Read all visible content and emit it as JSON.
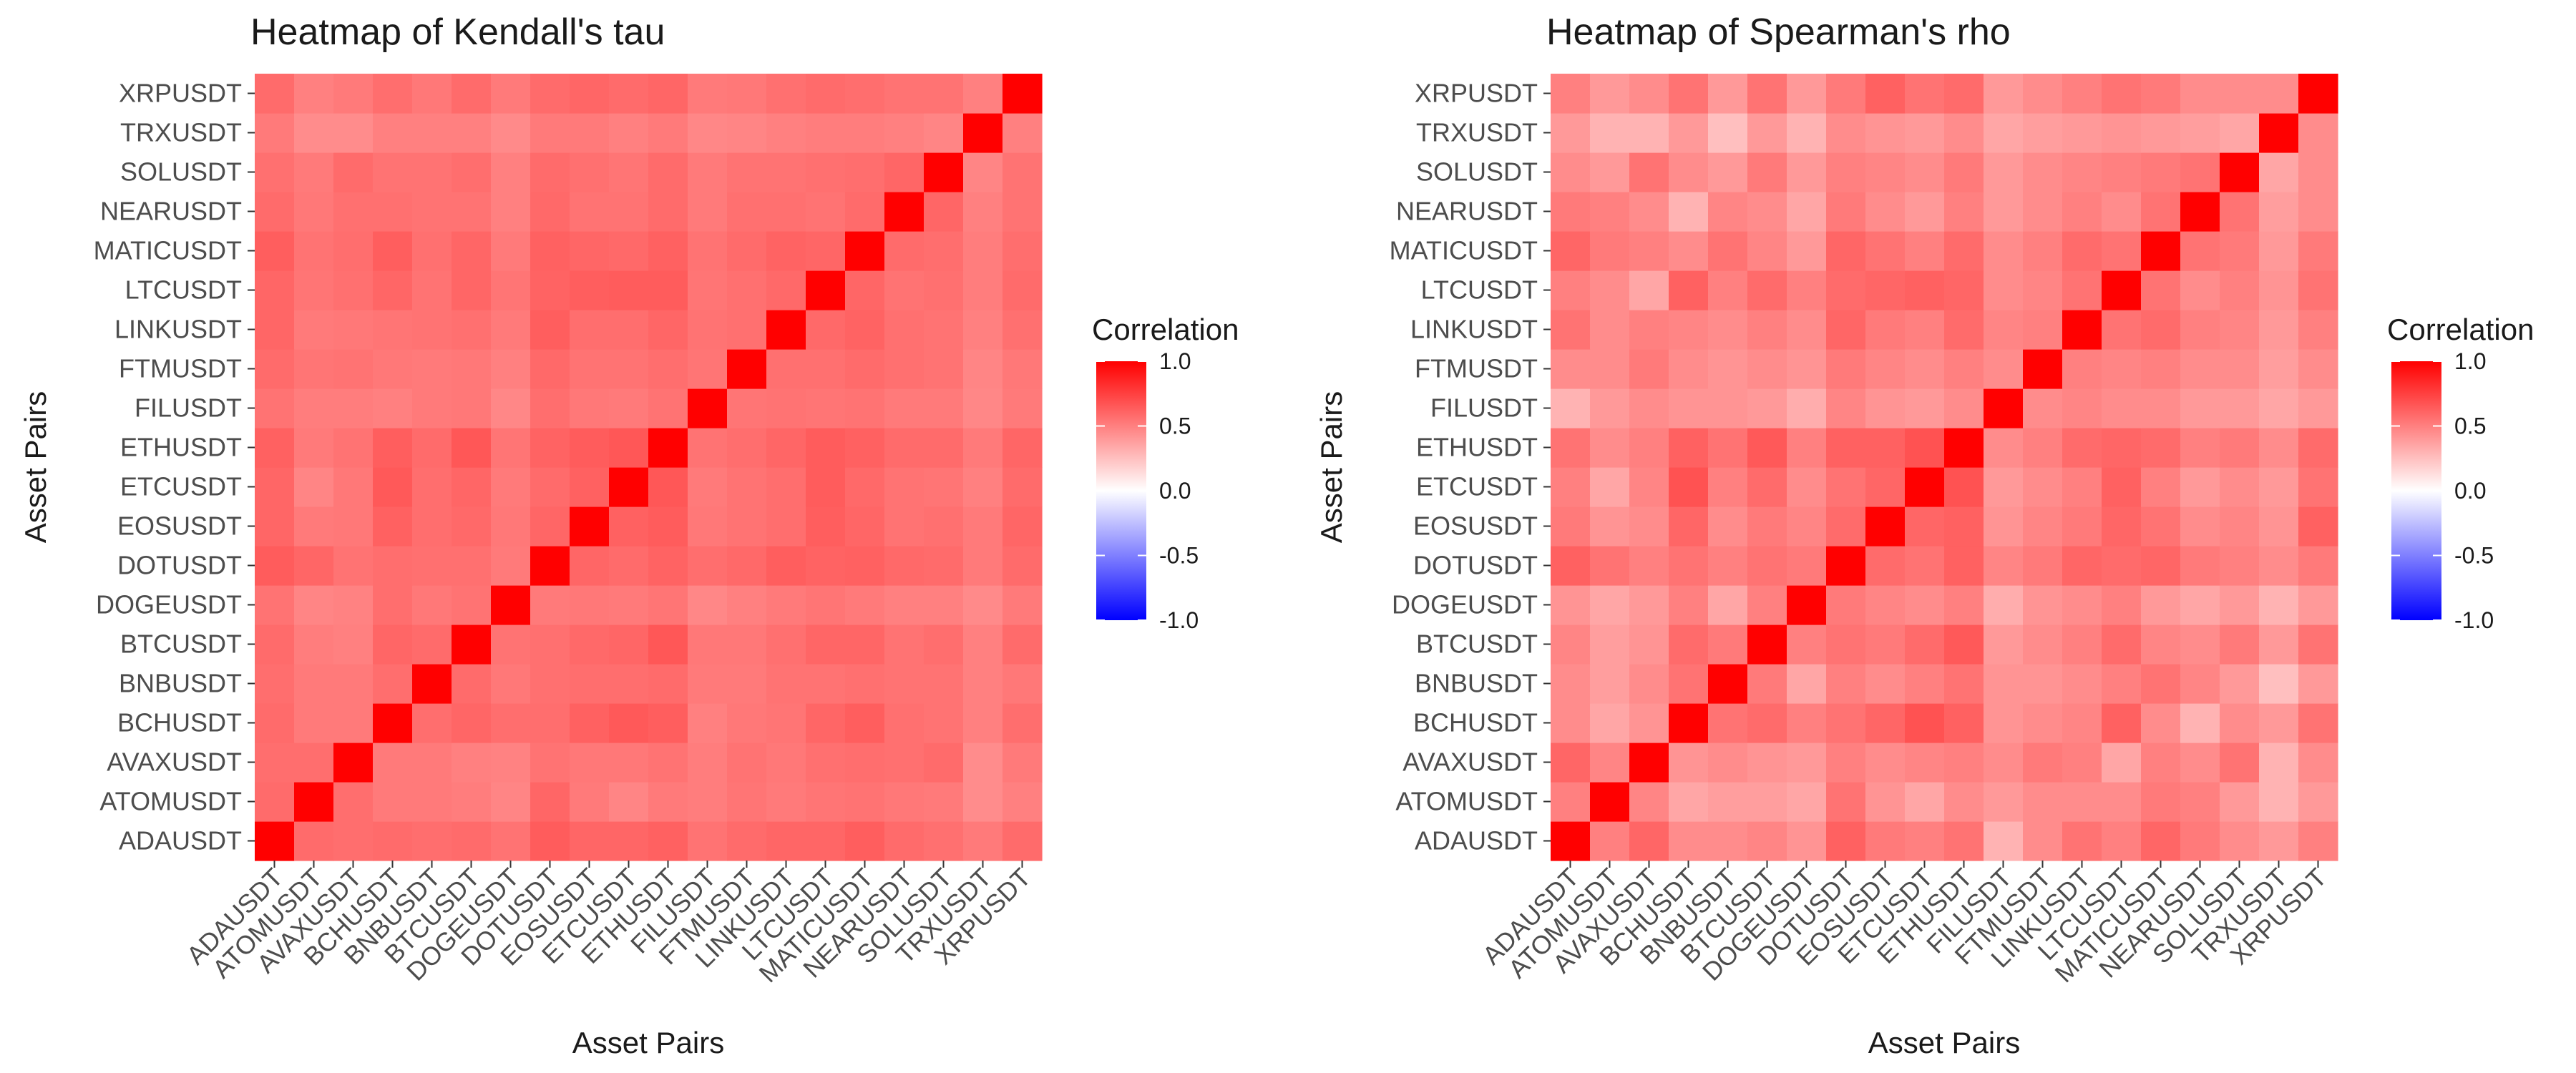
{
  "chart_data": [
    {
      "type": "heatmap",
      "title": "Heatmap of Kendall's tau",
      "xlabel": "Asset Pairs",
      "ylabel": "Asset Pairs",
      "legend_title": "Correlation",
      "legend_placement": "right",
      "legend_ticks": [
        "1.0",
        "0.5",
        "0.0",
        "-0.5",
        "-1.0"
      ],
      "color_range": [
        -1,
        1
      ],
      "colors": {
        "low": "#0000ff",
        "mid": "#ffffff",
        "high": "#ff0000"
      },
      "categories": [
        "ADAUSDT",
        "ATOMUSDT",
        "AVAXUSDT",
        "BCHUSDT",
        "BNBUSDT",
        "BTCUSDT",
        "DOGEUSDT",
        "DOTUSDT",
        "EOSUSDT",
        "ETCUSDT",
        "ETHUSDT",
        "FILUSDT",
        "FTMUSDT",
        "LINKUSDT",
        "LTCUSDT",
        "MATICUSDT",
        "NEARUSDT",
        "SOLUSDT",
        "TRXUSDT",
        "XRPUSDT"
      ],
      "matrix": [
        [
          1.0,
          0.58,
          0.57,
          0.58,
          0.57,
          0.58,
          0.55,
          0.64,
          0.6,
          0.6,
          0.62,
          0.55,
          0.58,
          0.6,
          0.6,
          0.63,
          0.58,
          0.56,
          0.52,
          0.58
        ],
        [
          0.58,
          1.0,
          0.57,
          0.52,
          0.52,
          0.51,
          0.48,
          0.6,
          0.52,
          0.48,
          0.52,
          0.51,
          0.54,
          0.52,
          0.54,
          0.55,
          0.53,
          0.52,
          0.45,
          0.5
        ],
        [
          0.57,
          0.57,
          1.0,
          0.52,
          0.52,
          0.5,
          0.49,
          0.55,
          0.53,
          0.53,
          0.55,
          0.51,
          0.55,
          0.53,
          0.56,
          0.57,
          0.56,
          0.58,
          0.45,
          0.52
        ],
        [
          0.58,
          0.52,
          0.52,
          1.0,
          0.57,
          0.6,
          0.57,
          0.57,
          0.62,
          0.65,
          0.63,
          0.5,
          0.53,
          0.54,
          0.6,
          0.63,
          0.56,
          0.55,
          0.5,
          0.57
        ],
        [
          0.57,
          0.52,
          0.52,
          0.57,
          1.0,
          0.58,
          0.53,
          0.56,
          0.57,
          0.57,
          0.58,
          0.52,
          0.52,
          0.55,
          0.55,
          0.56,
          0.55,
          0.55,
          0.5,
          0.53
        ],
        [
          0.58,
          0.51,
          0.5,
          0.6,
          0.58,
          1.0,
          0.55,
          0.56,
          0.59,
          0.6,
          0.66,
          0.53,
          0.53,
          0.56,
          0.6,
          0.6,
          0.55,
          0.57,
          0.5,
          0.58
        ],
        [
          0.55,
          0.48,
          0.49,
          0.57,
          0.53,
          0.55,
          1.0,
          0.52,
          0.53,
          0.52,
          0.54,
          0.47,
          0.5,
          0.52,
          0.54,
          0.52,
          0.5,
          0.5,
          0.46,
          0.52
        ],
        [
          0.64,
          0.6,
          0.55,
          0.57,
          0.56,
          0.56,
          0.52,
          1.0,
          0.6,
          0.58,
          0.61,
          0.57,
          0.59,
          0.63,
          0.61,
          0.62,
          0.59,
          0.58,
          0.52,
          0.58
        ],
        [
          0.6,
          0.52,
          0.53,
          0.62,
          0.57,
          0.59,
          0.53,
          0.6,
          1.0,
          0.62,
          0.64,
          0.53,
          0.55,
          0.57,
          0.63,
          0.6,
          0.55,
          0.56,
          0.52,
          0.6
        ],
        [
          0.6,
          0.48,
          0.53,
          0.65,
          0.57,
          0.6,
          0.52,
          0.58,
          0.62,
          1.0,
          0.66,
          0.52,
          0.55,
          0.57,
          0.64,
          0.59,
          0.55,
          0.54,
          0.5,
          0.58
        ],
        [
          0.62,
          0.52,
          0.55,
          0.63,
          0.58,
          0.66,
          0.54,
          0.61,
          0.64,
          0.66,
          1.0,
          0.55,
          0.57,
          0.6,
          0.64,
          0.62,
          0.58,
          0.58,
          0.52,
          0.6
        ],
        [
          0.55,
          0.51,
          0.51,
          0.5,
          0.52,
          0.53,
          0.47,
          0.57,
          0.53,
          0.52,
          0.55,
          1.0,
          0.54,
          0.55,
          0.54,
          0.55,
          0.52,
          0.52,
          0.47,
          0.52
        ],
        [
          0.58,
          0.54,
          0.55,
          0.53,
          0.52,
          0.53,
          0.5,
          0.59,
          0.55,
          0.55,
          0.57,
          0.54,
          1.0,
          0.56,
          0.56,
          0.58,
          0.56,
          0.55,
          0.48,
          0.53
        ],
        [
          0.6,
          0.52,
          0.53,
          0.54,
          0.55,
          0.56,
          0.52,
          0.63,
          0.57,
          0.57,
          0.6,
          0.55,
          0.56,
          1.0,
          0.59,
          0.61,
          0.56,
          0.55,
          0.5,
          0.56
        ],
        [
          0.6,
          0.54,
          0.56,
          0.6,
          0.55,
          0.6,
          0.54,
          0.61,
          0.63,
          0.64,
          0.64,
          0.54,
          0.56,
          0.59,
          1.0,
          0.6,
          0.55,
          0.56,
          0.51,
          0.58
        ],
        [
          0.63,
          0.55,
          0.57,
          0.63,
          0.56,
          0.6,
          0.52,
          0.62,
          0.6,
          0.59,
          0.62,
          0.55,
          0.58,
          0.61,
          0.6,
          1.0,
          0.58,
          0.57,
          0.51,
          0.57
        ],
        [
          0.58,
          0.53,
          0.56,
          0.56,
          0.55,
          0.55,
          0.5,
          0.59,
          0.55,
          0.55,
          0.58,
          0.52,
          0.56,
          0.56,
          0.55,
          0.58,
          1.0,
          0.6,
          0.5,
          0.55
        ],
        [
          0.56,
          0.52,
          0.58,
          0.55,
          0.55,
          0.57,
          0.5,
          0.58,
          0.56,
          0.54,
          0.58,
          0.52,
          0.55,
          0.55,
          0.56,
          0.57,
          0.6,
          1.0,
          0.48,
          0.55
        ],
        [
          0.52,
          0.45,
          0.45,
          0.5,
          0.5,
          0.5,
          0.46,
          0.52,
          0.52,
          0.5,
          0.52,
          0.47,
          0.48,
          0.5,
          0.51,
          0.51,
          0.5,
          0.48,
          1.0,
          0.5
        ],
        [
          0.58,
          0.5,
          0.52,
          0.57,
          0.53,
          0.58,
          0.52,
          0.58,
          0.6,
          0.58,
          0.6,
          0.52,
          0.53,
          0.56,
          0.58,
          0.57,
          0.55,
          0.55,
          0.5,
          1.0
        ]
      ]
    },
    {
      "type": "heatmap",
      "title": "Heatmap of Spearman's rho",
      "xlabel": "Asset Pairs",
      "ylabel": "Asset Pairs",
      "legend_title": "Correlation",
      "legend_placement": "right",
      "legend_ticks": [
        "1.0",
        "0.5",
        "0.0",
        "-0.5",
        "-1.0"
      ],
      "color_range": [
        -1,
        1
      ],
      "colors": {
        "low": "#0000ff",
        "mid": "#ffffff",
        "high": "#ff0000"
      },
      "categories": [
        "ADAUSDT",
        "ATOMUSDT",
        "AVAXUSDT",
        "BCHUSDT",
        "BNBUSDT",
        "BTCUSDT",
        "DOGEUSDT",
        "DOTUSDT",
        "EOSUSDT",
        "ETCUSDT",
        "ETHUSDT",
        "FILUSDT",
        "FTMUSDT",
        "LINKUSDT",
        "LTCUSDT",
        "MATICUSDT",
        "NEARUSDT",
        "SOLUSDT",
        "TRXUSDT",
        "XRPUSDT"
      ],
      "matrix": [
        [
          1.0,
          0.5,
          0.6,
          0.45,
          0.45,
          0.48,
          0.42,
          0.62,
          0.52,
          0.5,
          0.55,
          0.3,
          0.45,
          0.55,
          0.5,
          0.6,
          0.52,
          0.45,
          0.4,
          0.5
        ],
        [
          0.5,
          1.0,
          0.48,
          0.35,
          0.38,
          0.38,
          0.35,
          0.55,
          0.42,
          0.35,
          0.45,
          0.4,
          0.45,
          0.45,
          0.45,
          0.52,
          0.5,
          0.4,
          0.3,
          0.4
        ],
        [
          0.6,
          0.48,
          1.0,
          0.42,
          0.45,
          0.42,
          0.4,
          0.5,
          0.45,
          0.48,
          0.5,
          0.45,
          0.52,
          0.5,
          0.35,
          0.5,
          0.45,
          0.55,
          0.3,
          0.45
        ],
        [
          0.45,
          0.35,
          0.42,
          1.0,
          0.55,
          0.58,
          0.5,
          0.55,
          0.6,
          0.68,
          0.62,
          0.42,
          0.45,
          0.48,
          0.62,
          0.45,
          0.3,
          0.45,
          0.4,
          0.55
        ],
        [
          0.45,
          0.38,
          0.45,
          0.55,
          1.0,
          0.52,
          0.35,
          0.5,
          0.45,
          0.5,
          0.55,
          0.42,
          0.42,
          0.45,
          0.5,
          0.55,
          0.48,
          0.4,
          0.25,
          0.4
        ],
        [
          0.48,
          0.38,
          0.42,
          0.58,
          0.52,
          1.0,
          0.5,
          0.55,
          0.52,
          0.58,
          0.65,
          0.4,
          0.45,
          0.5,
          0.58,
          0.48,
          0.45,
          0.52,
          0.4,
          0.55
        ],
        [
          0.42,
          0.35,
          0.4,
          0.5,
          0.35,
          0.5,
          1.0,
          0.52,
          0.48,
          0.45,
          0.5,
          0.32,
          0.42,
          0.45,
          0.5,
          0.4,
          0.35,
          0.4,
          0.3,
          0.4
        ],
        [
          0.62,
          0.55,
          0.5,
          0.55,
          0.5,
          0.55,
          0.52,
          1.0,
          0.58,
          0.55,
          0.62,
          0.48,
          0.52,
          0.6,
          0.58,
          0.6,
          0.52,
          0.5,
          0.45,
          0.52
        ],
        [
          0.52,
          0.42,
          0.45,
          0.6,
          0.45,
          0.52,
          0.48,
          0.58,
          1.0,
          0.6,
          0.62,
          0.42,
          0.48,
          0.52,
          0.6,
          0.55,
          0.45,
          0.48,
          0.42,
          0.62
        ],
        [
          0.5,
          0.35,
          0.48,
          0.68,
          0.5,
          0.58,
          0.45,
          0.55,
          0.6,
          1.0,
          0.68,
          0.4,
          0.45,
          0.5,
          0.62,
          0.5,
          0.4,
          0.45,
          0.4,
          0.55
        ],
        [
          0.55,
          0.45,
          0.5,
          0.62,
          0.55,
          0.65,
          0.5,
          0.62,
          0.62,
          0.68,
          1.0,
          0.45,
          0.5,
          0.58,
          0.6,
          0.58,
          0.5,
          0.52,
          0.45,
          0.58
        ],
        [
          0.3,
          0.4,
          0.45,
          0.42,
          0.42,
          0.4,
          0.32,
          0.48,
          0.42,
          0.4,
          0.45,
          1.0,
          0.45,
          0.48,
          0.45,
          0.45,
          0.4,
          0.4,
          0.35,
          0.4
        ],
        [
          0.45,
          0.45,
          0.52,
          0.45,
          0.42,
          0.45,
          0.42,
          0.52,
          0.48,
          0.45,
          0.5,
          0.45,
          1.0,
          0.5,
          0.48,
          0.5,
          0.45,
          0.45,
          0.38,
          0.45
        ],
        [
          0.55,
          0.45,
          0.5,
          0.48,
          0.45,
          0.5,
          0.45,
          0.6,
          0.52,
          0.5,
          0.58,
          0.48,
          0.5,
          1.0,
          0.55,
          0.58,
          0.5,
          0.48,
          0.4,
          0.5
        ],
        [
          0.5,
          0.45,
          0.35,
          0.62,
          0.5,
          0.58,
          0.5,
          0.58,
          0.6,
          0.62,
          0.6,
          0.45,
          0.48,
          0.55,
          1.0,
          0.55,
          0.45,
          0.5,
          0.42,
          0.55
        ],
        [
          0.6,
          0.52,
          0.5,
          0.45,
          0.55,
          0.48,
          0.4,
          0.6,
          0.55,
          0.5,
          0.58,
          0.45,
          0.5,
          0.58,
          0.55,
          1.0,
          0.55,
          0.52,
          0.4,
          0.52
        ],
        [
          0.52,
          0.5,
          0.45,
          0.3,
          0.48,
          0.45,
          0.35,
          0.52,
          0.45,
          0.4,
          0.5,
          0.4,
          0.45,
          0.5,
          0.45,
          0.55,
          1.0,
          0.55,
          0.38,
          0.45
        ],
        [
          0.45,
          0.4,
          0.55,
          0.45,
          0.4,
          0.52,
          0.4,
          0.5,
          0.48,
          0.45,
          0.52,
          0.4,
          0.45,
          0.48,
          0.5,
          0.52,
          0.55,
          1.0,
          0.35,
          0.45
        ],
        [
          0.4,
          0.3,
          0.3,
          0.4,
          0.25,
          0.4,
          0.3,
          0.45,
          0.42,
          0.4,
          0.45,
          0.35,
          0.38,
          0.4,
          0.42,
          0.4,
          0.38,
          0.35,
          1.0,
          0.45
        ],
        [
          0.5,
          0.4,
          0.45,
          0.55,
          0.4,
          0.55,
          0.4,
          0.52,
          0.62,
          0.55,
          0.58,
          0.4,
          0.45,
          0.5,
          0.55,
          0.52,
          0.45,
          0.45,
          0.45,
          1.0
        ]
      ]
    }
  ]
}
